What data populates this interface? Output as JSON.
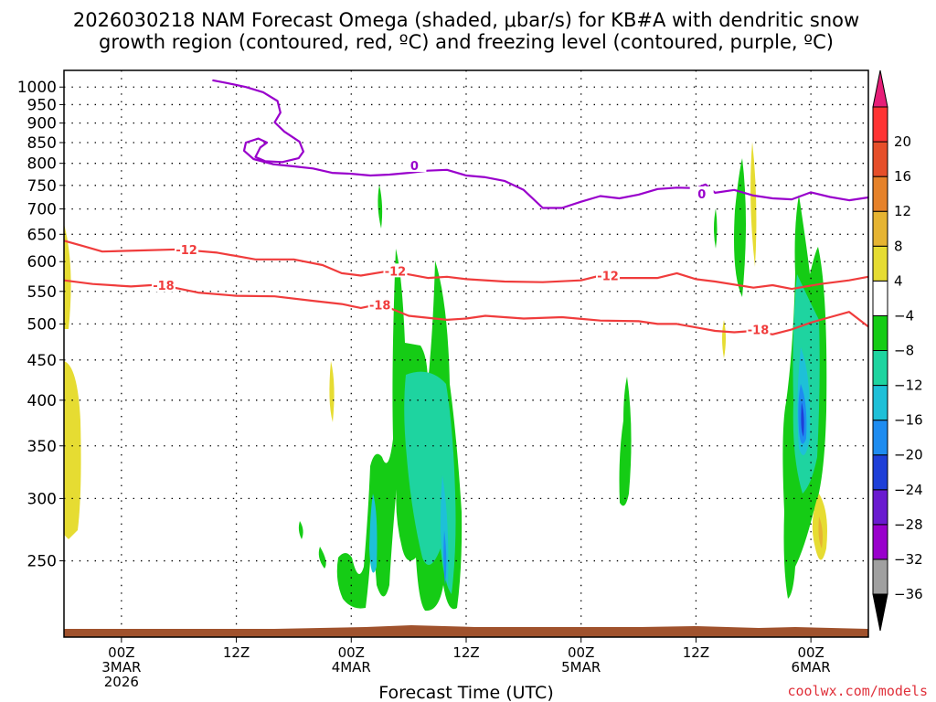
{
  "title_line1": "2026030218 NAM Forecast Omega (shaded, μbar/s) for KB#A with dendritic snow",
  "title_line2": "growth region (contoured, red, ºC) and freezing level (contoured, purple, ºC)",
  "credit": "coolwx.com/models",
  "chart_data": {
    "type": "heatmap",
    "xlabel": "Forecast Time (UTC)",
    "ylabel": "",
    "x_unit": "hours since 2026-03-02 18Z",
    "xlim": [
      0,
      84
    ],
    "ylim_hpa": [
      1050,
      200
    ],
    "y_scale": "log",
    "grid": true,
    "y_ticks": [
      250,
      300,
      350,
      400,
      450,
      500,
      550,
      600,
      650,
      700,
      750,
      800,
      850,
      900,
      950,
      1000
    ],
    "x_ticks": [
      {
        "x": 6,
        "lines": [
          "00Z",
          "3MAR",
          "2026"
        ]
      },
      {
        "x": 18,
        "lines": [
          "12Z"
        ]
      },
      {
        "x": 30,
        "lines": [
          "00Z",
          "4MAR"
        ]
      },
      {
        "x": 42,
        "lines": [
          "12Z"
        ]
      },
      {
        "x": 54,
        "lines": [
          "00Z",
          "5MAR"
        ]
      },
      {
        "x": 66,
        "lines": [
          "12Z"
        ]
      },
      {
        "x": 78,
        "lines": [
          "00Z",
          "6MAR"
        ]
      }
    ],
    "colorbar": {
      "levels": [
        -36,
        -32,
        -28,
        -24,
        -20,
        -16,
        -12,
        -8,
        -4,
        4,
        8,
        12,
        16,
        20
      ],
      "colors": [
        "#a0a0a0",
        "#9900cc",
        "#6a1bd0",
        "#1e3fd8",
        "#1e8cf0",
        "#1ec0d8",
        "#1ed4a0",
        "#15cc15",
        "#ffffff",
        "#e6dc32",
        "#e6b432",
        "#e6822a",
        "#e64f2a",
        "#ff3333"
      ],
      "under_color": "#000000",
      "over_color": "#e61e78"
    },
    "contours": [
      {
        "name": "-18",
        "color": "#f03c3c",
        "points": [
          [
            0,
            568
          ],
          [
            3,
            562
          ],
          [
            7,
            558
          ],
          [
            10,
            561
          ],
          [
            14,
            548
          ],
          [
            18,
            543
          ],
          [
            22,
            542
          ],
          [
            26,
            535
          ],
          [
            29,
            530
          ],
          [
            31,
            524
          ],
          [
            33,
            530
          ],
          [
            36,
            512
          ],
          [
            40,
            506
          ],
          [
            42,
            508
          ],
          [
            44,
            512
          ],
          [
            48,
            508
          ],
          [
            52,
            510
          ],
          [
            56,
            505
          ],
          [
            60,
            504
          ],
          [
            62,
            500
          ],
          [
            64,
            500
          ],
          [
            66,
            495
          ],
          [
            68,
            490
          ],
          [
            70,
            488
          ],
          [
            72,
            490
          ],
          [
            74,
            485
          ],
          [
            76,
            492
          ],
          [
            78,
            502
          ],
          [
            80,
            510
          ],
          [
            82,
            518
          ],
          [
            84,
            496
          ]
        ],
        "labels": [
          [
            10.4,
            560
          ],
          [
            33,
            529
          ],
          [
            72.5,
            492
          ]
        ]
      },
      {
        "name": "-12",
        "color": "#f03c3c",
        "points": [
          [
            0,
            638
          ],
          [
            2,
            628
          ],
          [
            4,
            618
          ],
          [
            8,
            620
          ],
          [
            12,
            622
          ],
          [
            16,
            616
          ],
          [
            20,
            604
          ],
          [
            24,
            604
          ],
          [
            27,
            594
          ],
          [
            29,
            580
          ],
          [
            31,
            576
          ],
          [
            34,
            584
          ],
          [
            36,
            578
          ],
          [
            38,
            572
          ],
          [
            40,
            574
          ],
          [
            42,
            570
          ],
          [
            46,
            566
          ],
          [
            50,
            565
          ],
          [
            54,
            568
          ],
          [
            56,
            576
          ],
          [
            58,
            572
          ],
          [
            62,
            572
          ],
          [
            64,
            580
          ],
          [
            66,
            570
          ],
          [
            68,
            566
          ],
          [
            72,
            556
          ],
          [
            74,
            560
          ],
          [
            76,
            554
          ],
          [
            79,
            562
          ],
          [
            82,
            568
          ],
          [
            84,
            574
          ]
        ],
        "labels": [
          [
            12.8,
            622
          ],
          [
            34.6,
            584
          ],
          [
            56.8,
            576
          ]
        ]
      },
      {
        "name": "0",
        "color": "#9900cc",
        "points": [
          [
            15.5,
            1020
          ],
          [
            17,
            1012
          ],
          [
            19,
            1000
          ],
          [
            20.8,
            985
          ],
          [
            22.3,
            960
          ],
          [
            22.6,
            928
          ],
          [
            22,
            902
          ],
          [
            23,
            878
          ],
          [
            24.6,
            852
          ],
          [
            25,
            828
          ],
          [
            24.5,
            812
          ],
          [
            22.8,
            803
          ],
          [
            21,
            805
          ],
          [
            20,
            815
          ],
          [
            20.5,
            838
          ],
          [
            21.2,
            850
          ],
          [
            20.3,
            860
          ],
          [
            19,
            850
          ],
          [
            18.8,
            830
          ],
          [
            19.8,
            810
          ],
          [
            21.8,
            798
          ],
          [
            24,
            793
          ],
          [
            26,
            788
          ],
          [
            28,
            778
          ],
          [
            30,
            776
          ],
          [
            32,
            772
          ],
          [
            34,
            774
          ],
          [
            36,
            778
          ],
          [
            38,
            783
          ],
          [
            40,
            785
          ],
          [
            42,
            772
          ],
          [
            44,
            768
          ],
          [
            46,
            760
          ],
          [
            48,
            740
          ],
          [
            50,
            702
          ],
          [
            52,
            702
          ],
          [
            54,
            715
          ],
          [
            56,
            727
          ],
          [
            58,
            722
          ],
          [
            60,
            730
          ],
          [
            62,
            742
          ],
          [
            64,
            745
          ],
          [
            66,
            744
          ],
          [
            67,
            752
          ],
          [
            68,
            734
          ],
          [
            70,
            740
          ],
          [
            72,
            728
          ],
          [
            74,
            722
          ],
          [
            76,
            720
          ],
          [
            78,
            735
          ],
          [
            80,
            725
          ],
          [
            82,
            718
          ],
          [
            84,
            724
          ]
        ],
        "labels": [
          [
            36.6,
            795
          ],
          [
            66.6,
            732
          ]
        ]
      }
    ]
  }
}
